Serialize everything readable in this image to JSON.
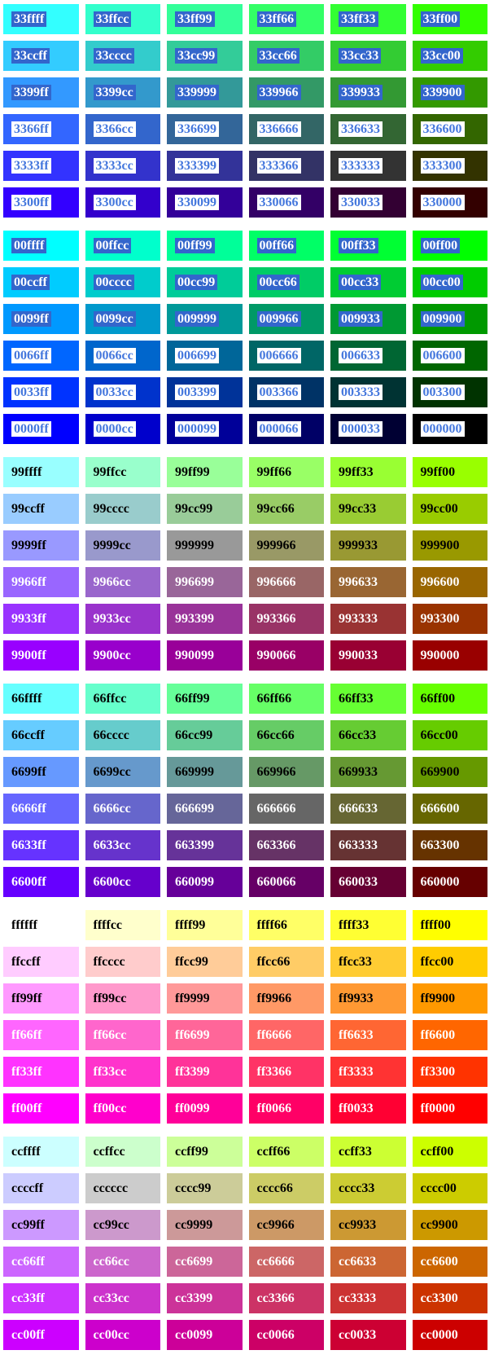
{
  "page": {
    "background": "#ffffff"
  },
  "styles": {
    "selection_highlight": "#3366cc",
    "selection_text": "#ffffff",
    "inverted_highlight": "#ffffff",
    "inverted_text": "#4477dd",
    "dark_text": "#000000",
    "light_text": "#ffffff"
  },
  "grid": {
    "columns": 6,
    "blocks": [
      {
        "name": "33",
        "rows": [
          {
            "labels": [
              "33ffff",
              "33ffcc",
              "33ff99",
              "33ff66",
              "33ff33",
              "33ff00"
            ],
            "text_style": "sel-blue"
          },
          {
            "labels": [
              "33ccff",
              "33cccc",
              "33cc99",
              "33cc66",
              "33cc33",
              "33cc00"
            ],
            "text_style": "sel-blue"
          },
          {
            "labels": [
              "3399ff",
              "3399cc",
              "339999",
              "339966",
              "339933",
              "339900"
            ],
            "text_style": "sel-blue"
          },
          {
            "labels": [
              "3366ff",
              "3366cc",
              "336699",
              "336666",
              "336633",
              "336600"
            ],
            "text_style": "sel-white"
          },
          {
            "labels": [
              "3333ff",
              "3333cc",
              "333399",
              "333366",
              "333333",
              "333300"
            ],
            "text_style": "sel-white"
          },
          {
            "labels": [
              "3300ff",
              "3300cc",
              "330099",
              "330066",
              "330033",
              "330000"
            ],
            "text_style": "sel-white"
          }
        ]
      },
      {
        "name": "00",
        "rows": [
          {
            "labels": [
              "00ffff",
              "00ffcc",
              "00ff99",
              "00ff66",
              "00ff33",
              "00ff00"
            ],
            "text_style": "sel-blue"
          },
          {
            "labels": [
              "00ccff",
              "00cccc",
              "00cc99",
              "00cc66",
              "00cc33",
              "00cc00"
            ],
            "text_style": "sel-blue"
          },
          {
            "labels": [
              "0099ff",
              "0099cc",
              "009999",
              "009966",
              "009933",
              "009900"
            ],
            "text_style": "sel-blue"
          },
          {
            "labels": [
              "0066ff",
              "0066cc",
              "006699",
              "006666",
              "006633",
              "006600"
            ],
            "text_style": "sel-white"
          },
          {
            "labels": [
              "0033ff",
              "0033cc",
              "003399",
              "003366",
              "003333",
              "003300"
            ],
            "text_style": "sel-white"
          },
          {
            "labels": [
              "0000ff",
              "0000cc",
              "000099",
              "000066",
              "000033",
              "000000"
            ],
            "text_style": "sel-white"
          }
        ]
      },
      {
        "name": "99",
        "rows": [
          {
            "labels": [
              "99ffff",
              "99ffcc",
              "99ff99",
              "99ff66",
              "99ff33",
              "99ff00"
            ],
            "text_style": "t-dark"
          },
          {
            "labels": [
              "99ccff",
              "99cccc",
              "99cc99",
              "99cc66",
              "99cc33",
              "99cc00"
            ],
            "text_style": "t-dark"
          },
          {
            "labels": [
              "9999ff",
              "9999cc",
              "999999",
              "999966",
              "999933",
              "999900"
            ],
            "text_style": "t-dark"
          },
          {
            "labels": [
              "9966ff",
              "9966cc",
              "996699",
              "996666",
              "996633",
              "996600"
            ],
            "text_style": "t-light"
          },
          {
            "labels": [
              "9933ff",
              "9933cc",
              "993399",
              "993366",
              "993333",
              "993300"
            ],
            "text_style": "t-light"
          },
          {
            "labels": [
              "9900ff",
              "9900cc",
              "990099",
              "990066",
              "990033",
              "990000"
            ],
            "text_style": "t-light"
          }
        ]
      },
      {
        "name": "66",
        "rows": [
          {
            "labels": [
              "66ffff",
              "66ffcc",
              "66ff99",
              "66ff66",
              "66ff33",
              "66ff00"
            ],
            "text_style": "t-dark"
          },
          {
            "labels": [
              "66ccff",
              "66cccc",
              "66cc99",
              "66cc66",
              "66cc33",
              "66cc00"
            ],
            "text_style": "t-dark"
          },
          {
            "labels": [
              "6699ff",
              "6699cc",
              "669999",
              "669966",
              "669933",
              "669900"
            ],
            "text_style": "t-dark"
          },
          {
            "labels": [
              "6666ff",
              "6666cc",
              "666699",
              "666666",
              "666633",
              "666600"
            ],
            "text_style": "t-light"
          },
          {
            "labels": [
              "6633ff",
              "6633cc",
              "663399",
              "663366",
              "663333",
              "663300"
            ],
            "text_style": "t-light"
          },
          {
            "labels": [
              "6600ff",
              "6600cc",
              "660099",
              "660066",
              "660033",
              "660000"
            ],
            "text_style": "t-light"
          }
        ]
      },
      {
        "name": "ff",
        "rows": [
          {
            "labels": [
              "ffffff",
              "ffffcc",
              "ffff99",
              "ffff66",
              "ffff33",
              "ffff00"
            ],
            "text_style": "t-dark"
          },
          {
            "labels": [
              "ffccff",
              "ffcccc",
              "ffcc99",
              "ffcc66",
              "ffcc33",
              "ffcc00"
            ],
            "text_style": "t-dark"
          },
          {
            "labels": [
              "ff99ff",
              "ff99cc",
              "ff9999",
              "ff9966",
              "ff9933",
              "ff9900"
            ],
            "text_style": "t-dark"
          },
          {
            "labels": [
              "ff66ff",
              "ff66cc",
              "ff6699",
              "ff6666",
              "ff6633",
              "ff6600"
            ],
            "text_style": "t-light"
          },
          {
            "labels": [
              "ff33ff",
              "ff33cc",
              "ff3399",
              "ff3366",
              "ff3333",
              "ff3300"
            ],
            "text_style": "t-light"
          },
          {
            "labels": [
              "ff00ff",
              "ff00cc",
              "ff0099",
              "ff0066",
              "ff0033",
              "ff0000"
            ],
            "text_style": "t-light"
          }
        ]
      },
      {
        "name": "cc",
        "rows": [
          {
            "labels": [
              "ccffff",
              "ccffcc",
              "ccff99",
              "ccff66",
              "ccff33",
              "ccff00"
            ],
            "text_style": "t-dark"
          },
          {
            "labels": [
              "ccccff",
              "cccccc",
              "cccc99",
              "cccc66",
              "cccc33",
              "cccc00"
            ],
            "text_style": "t-dark"
          },
          {
            "labels": [
              "cc99ff",
              "cc99cc",
              "cc9999",
              "cc9966",
              "cc9933",
              "cc9900"
            ],
            "text_style": "t-dark"
          },
          {
            "labels": [
              "cc66ff",
              "cc66cc",
              "cc6699",
              "cc6666",
              "cc6633",
              "cc6600"
            ],
            "text_style": "t-light"
          },
          {
            "labels": [
              "cc33ff",
              "cc33cc",
              "cc3399",
              "cc3366",
              "cc3333",
              "cc3300"
            ],
            "text_style": "t-light"
          },
          {
            "labels": [
              "cc00ff",
              "cc00cc",
              "cc0099",
              "cc0066",
              "cc0033",
              "cc0000"
            ],
            "text_style": "t-light"
          }
        ]
      }
    ]
  }
}
